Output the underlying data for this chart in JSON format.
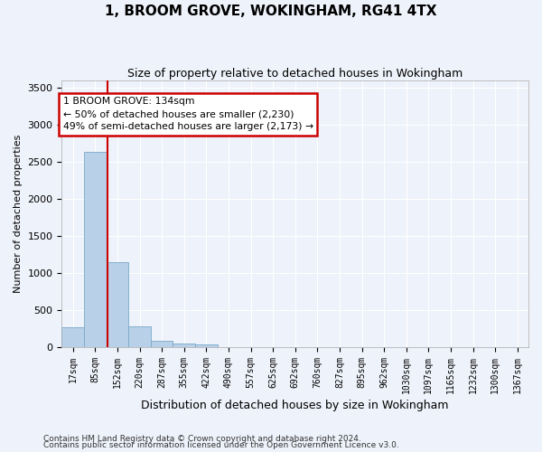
{
  "title": "1, BROOM GROVE, WOKINGHAM, RG41 4TX",
  "subtitle": "Size of property relative to detached houses in Wokingham",
  "xlabel": "Distribution of detached houses by size in Wokingham",
  "ylabel": "Number of detached properties",
  "bar_color": "#b8d0e8",
  "bar_edge_color": "#7aaac8",
  "background_color": "#eef2fa",
  "grid_color": "#ffffff",
  "bin_labels": [
    "17sqm",
    "85sqm",
    "152sqm",
    "220sqm",
    "287sqm",
    "355sqm",
    "422sqm",
    "490sqm",
    "557sqm",
    "625sqm",
    "692sqm",
    "760sqm",
    "827sqm",
    "895sqm",
    "962sqm",
    "1030sqm",
    "1097sqm",
    "1165sqm",
    "1232sqm",
    "1300sqm",
    "1367sqm"
  ],
  "bar_heights": [
    270,
    2640,
    1150,
    285,
    90,
    50,
    40,
    0,
    0,
    0,
    0,
    0,
    0,
    0,
    0,
    0,
    0,
    0,
    0,
    0,
    0
  ],
  "ylim": [
    0,
    3600
  ],
  "yticks": [
    0,
    500,
    1000,
    1500,
    2000,
    2500,
    3000,
    3500
  ],
  "property_line_x": 1.55,
  "annotation_text": "1 BROOM GROVE: 134sqm\n← 50% of detached houses are smaller (2,230)\n49% of semi-detached houses are larger (2,173) →",
  "annotation_box_color": "#ffffff",
  "annotation_box_edge": "#cc0000",
  "property_line_color": "#cc0000",
  "footnote1": "Contains HM Land Registry data © Crown copyright and database right 2024.",
  "footnote2": "Contains public sector information licensed under the Open Government Licence v3.0."
}
